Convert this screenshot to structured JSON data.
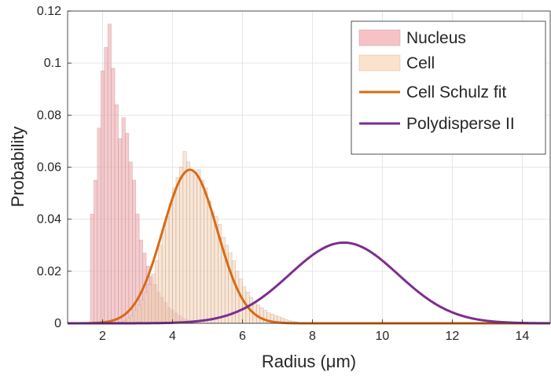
{
  "chart_data": {
    "type": "bar",
    "xlabel": "Radius (μm)",
    "ylabel": "Probability",
    "xlim": [
      1,
      14.8
    ],
    "ylim": [
      0,
      0.12
    ],
    "x_ticks": [
      "2",
      "4",
      "6",
      "8",
      "10",
      "12",
      "14"
    ],
    "x_tick_values": [
      2,
      4,
      6,
      8,
      10,
      12,
      14
    ],
    "y_ticks": [
      "0",
      "0.02",
      "0.04",
      "0.06",
      "0.08",
      "0.1",
      "0.12"
    ],
    "y_tick_values": [
      0,
      0.02,
      0.04,
      0.06,
      0.08,
      0.1,
      0.12
    ],
    "grid": true,
    "legend_position": "top-right",
    "legend": [
      "Nucleus",
      "Cell",
      "Cell Schulz fit",
      "Polydisperse II"
    ],
    "histograms": [
      {
        "name": "Nucleus",
        "color": "#f2a8ad",
        "bin_start": 1.65,
        "bin_width": 0.1,
        "values": [
          0.042,
          0.055,
          0.075,
          0.097,
          0.106,
          0.115,
          0.098,
          0.084,
          0.071,
          0.079,
          0.073,
          0.062,
          0.055,
          0.042,
          0.032,
          0.027,
          0.022,
          0.018,
          0.015,
          0.012,
          0.01,
          0.008,
          0.006,
          0.005,
          0.004,
          0.003,
          0.002,
          0.0015,
          0.001,
          0.0008
        ]
      },
      {
        "name": "Cell",
        "color": "#f8d6b8",
        "bin_start": 2.5,
        "bin_width": 0.1,
        "values": [
          0.0005,
          0.001,
          0.002,
          0.003,
          0.005,
          0.007,
          0.009,
          0.012,
          0.015,
          0.019,
          0.024,
          0.03,
          0.036,
          0.041,
          0.046,
          0.052,
          0.056,
          0.06,
          0.066,
          0.062,
          0.058,
          0.057,
          0.059,
          0.055,
          0.052,
          0.047,
          0.043,
          0.041,
          0.038,
          0.033,
          0.03,
          0.027,
          0.024,
          0.02,
          0.017,
          0.014,
          0.012,
          0.01,
          0.008,
          0.007,
          0.006,
          0.005,
          0.004,
          0.0035,
          0.003,
          0.0025,
          0.002,
          0.0015,
          0.001,
          0.0008,
          0.0005
        ]
      }
    ],
    "curves": [
      {
        "name": "Cell Schulz fit",
        "color": "#d96a14",
        "mean": 4.5,
        "peak": 0.059,
        "sigma": 0.78
      },
      {
        "name": "Polydisperse II",
        "color": "#7b2f8e",
        "mean": 8.9,
        "peak": 0.031,
        "sigma": 1.55
      }
    ]
  }
}
